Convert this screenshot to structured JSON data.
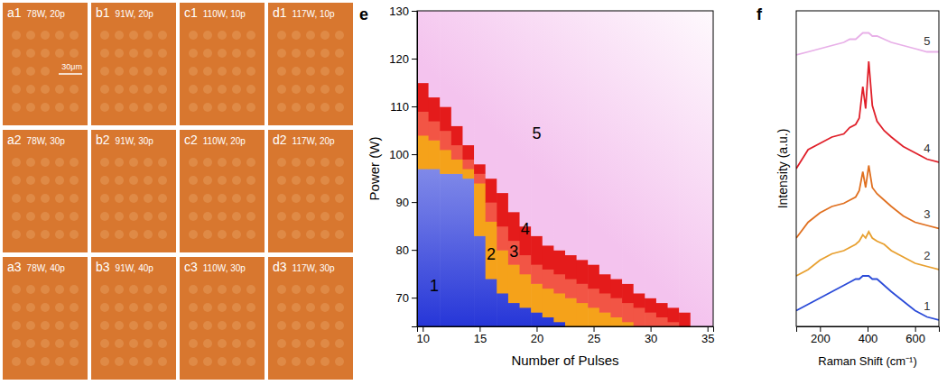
{
  "images": {
    "panels": [
      {
        "letter": "a1",
        "caption": "78W, 20p"
      },
      {
        "letter": "b1",
        "caption": "91W, 20p"
      },
      {
        "letter": "c1",
        "caption": "110W, 10p"
      },
      {
        "letter": "d1",
        "caption": "117W, 10p"
      },
      {
        "letter": "a2",
        "caption": "78W, 30p"
      },
      {
        "letter": "b2",
        "caption": "91W, 30p"
      },
      {
        "letter": "c2",
        "caption": "110W, 20p"
      },
      {
        "letter": "d2",
        "caption": "117W, 20p"
      },
      {
        "letter": "a3",
        "caption": "78W, 40p"
      },
      {
        "letter": "b3",
        "caption": "91W, 40p"
      },
      {
        "letter": "c3",
        "caption": "110W, 30p"
      },
      {
        "letter": "d3",
        "caption": "117W, 30p"
      }
    ],
    "scale_bar": "30μm"
  },
  "chart_data": [
    {
      "type": "heatmap",
      "panel": "e",
      "xlabel": "Number of Pulses",
      "ylabel": "Power (W)",
      "x": [
        10,
        11,
        12,
        13,
        14,
        15,
        16,
        17,
        18,
        19,
        20,
        21,
        22,
        23,
        24,
        25,
        26,
        27,
        28,
        29,
        30,
        31,
        32,
        33,
        34,
        35
      ],
      "regions": [
        {
          "name": "1",
          "color": "#2636d8",
          "upper": [
            97,
            97,
            96,
            96,
            95,
            83,
            74,
            71,
            69,
            68,
            67,
            66,
            65,
            64,
            64,
            64,
            64,
            64,
            64,
            64,
            64,
            64,
            64,
            64,
            64,
            64
          ]
        },
        {
          "name": "2",
          "color": "#f5a21a",
          "upper": [
            104,
            103,
            101,
            99,
            97,
            94,
            86,
            80,
            77,
            75,
            73,
            72,
            71,
            70,
            69,
            68,
            67,
            66,
            65,
            64,
            64,
            64,
            64,
            64,
            64,
            64
          ]
        },
        {
          "name": "3",
          "color": "#f25545",
          "upper": [
            109,
            107,
            105,
            102,
            99,
            96,
            90,
            85,
            82,
            79,
            77,
            76,
            75,
            74,
            73,
            72,
            71,
            70,
            69,
            68,
            67,
            66,
            65,
            64,
            64,
            64
          ]
        },
        {
          "name": "4",
          "color": "#e41b1b",
          "upper": [
            115,
            112,
            110,
            106,
            102,
            98,
            95,
            92,
            88,
            85,
            83,
            81,
            80,
            79,
            78,
            77,
            75,
            74,
            73,
            71,
            70,
            69,
            68,
            67,
            64,
            64
          ]
        },
        {
          "name": "5",
          "color": "#f4c3ee"
        }
      ],
      "xlim": [
        9.5,
        35.5
      ],
      "ylim": [
        64,
        130
      ],
      "xticks": [
        10,
        15,
        20,
        25,
        30,
        35
      ],
      "yticks": [
        70,
        80,
        90,
        100,
        110,
        120,
        130
      ]
    },
    {
      "type": "line",
      "panel": "f",
      "xlabel": "Raman Shift (cm⁻¹)",
      "ylabel": "Intensity (a.u.)",
      "x": [
        100,
        150,
        200,
        250,
        300,
        325,
        350,
        365,
        380,
        392,
        405,
        420,
        440,
        470,
        500,
        550,
        600,
        650,
        700
      ],
      "series": [
        {
          "name": "1",
          "color": "#2b4bd8",
          "values": [
            0.5,
            0.7,
            0.9,
            1.1,
            1.3,
            1.4,
            1.5,
            1.5,
            1.6,
            1.6,
            1.6,
            1.5,
            1.5,
            1.3,
            1.1,
            0.8,
            0.5,
            0.3,
            0.2
          ]
        },
        {
          "name": "2",
          "color": "#e8a030",
          "values": [
            1.6,
            1.8,
            2.1,
            2.3,
            2.4,
            2.5,
            2.6,
            2.7,
            2.9,
            2.8,
            3.0,
            2.8,
            2.7,
            2.6,
            2.4,
            2.2,
            2.0,
            1.9,
            1.8
          ]
        },
        {
          "name": "3",
          "color": "#e07020",
          "values": [
            2.8,
            3.3,
            3.6,
            3.8,
            3.9,
            4.0,
            4.1,
            4.3,
            4.9,
            4.4,
            5.1,
            4.4,
            4.2,
            4.0,
            3.8,
            3.5,
            3.3,
            3.2,
            3.1
          ]
        },
        {
          "name": "4",
          "color": "#e0202a",
          "values": [
            5.0,
            5.6,
            5.8,
            6.0,
            6.1,
            6.3,
            6.4,
            6.6,
            7.6,
            6.9,
            8.4,
            7.0,
            6.5,
            6.2,
            6.0,
            5.7,
            5.5,
            5.3,
            5.2
          ]
        },
        {
          "name": "5",
          "color": "#e8b0e8",
          "values": [
            8.6,
            8.7,
            8.8,
            8.9,
            9.0,
            9.1,
            9.1,
            9.2,
            9.3,
            9.3,
            9.3,
            9.2,
            9.2,
            9.1,
            9.0,
            8.9,
            8.8,
            8.7,
            8.7
          ]
        }
      ],
      "xlim": [
        100,
        700
      ],
      "ylim": [
        0,
        10
      ],
      "xticks": [
        200,
        400,
        600
      ],
      "tick_labels": "x"
    }
  ]
}
